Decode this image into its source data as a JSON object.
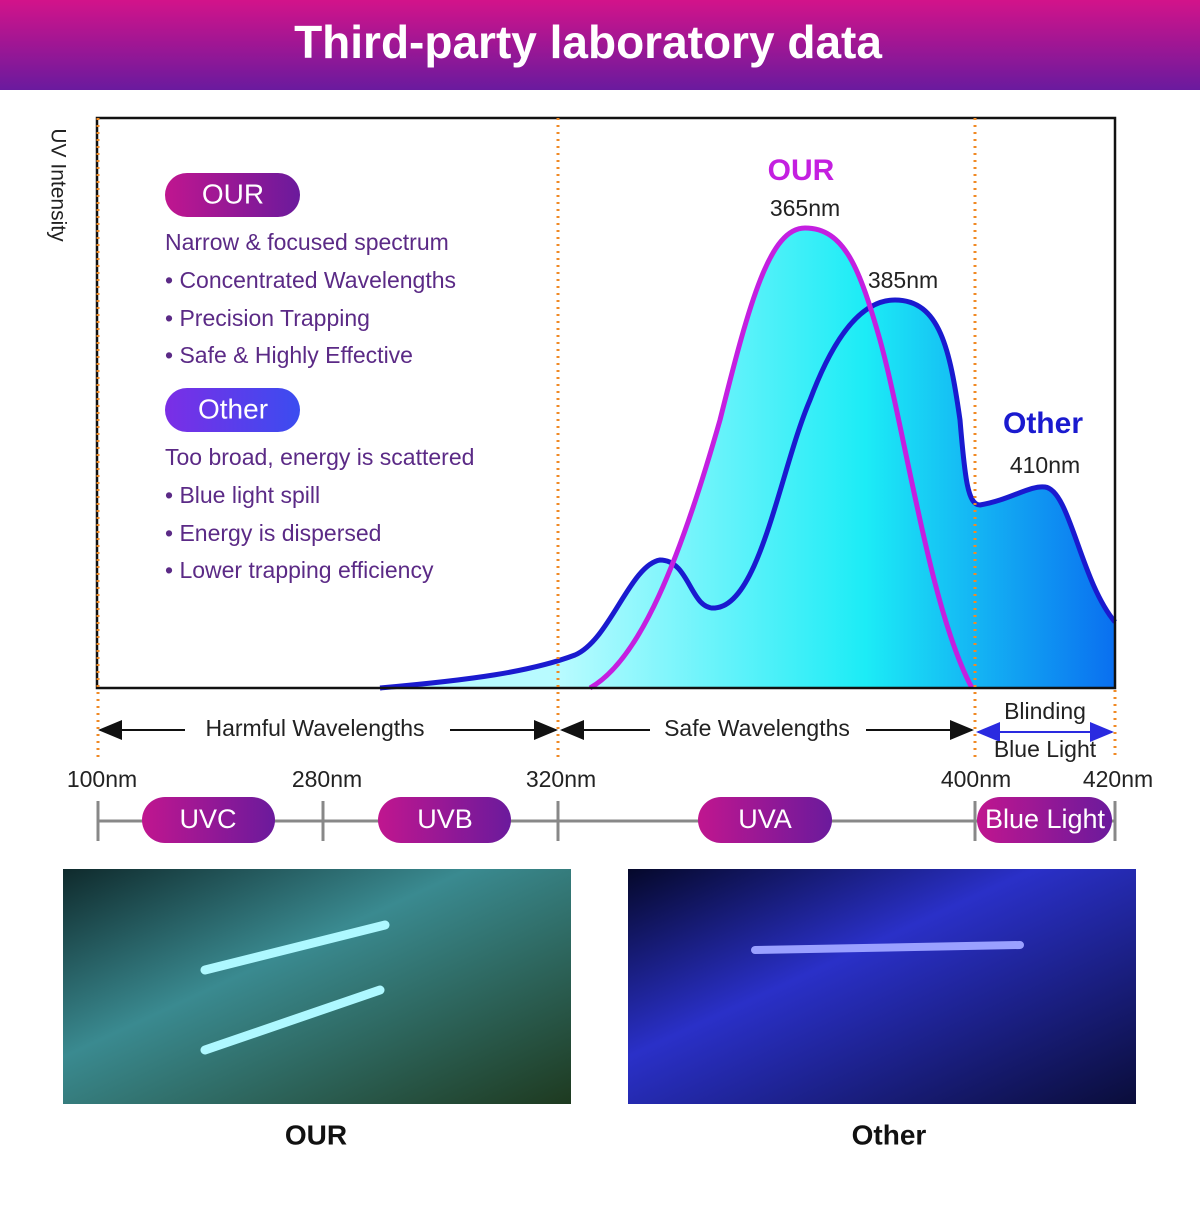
{
  "header": {
    "title": "Third-party laboratory data"
  },
  "chart": {
    "y_axis_label": "UV Intensity",
    "peaks": [
      {
        "name": "OUR",
        "wavelength": "365nm"
      },
      {
        "wavelength": "385nm"
      },
      {
        "name": "Other",
        "wavelength": "410nm"
      }
    ]
  },
  "legend": {
    "our": {
      "badge": "OUR",
      "summary": "Narrow & focused spectrum",
      "points": [
        "• Concentrated Wavelengths",
        "• Precision Trapping",
        "• Safe & Highly Effective"
      ]
    },
    "other": {
      "badge": "Other",
      "summary": "Too broad, energy is scattered",
      "points": [
        "• Blue light spill",
        "• Energy is dispersed",
        "• Lower trapping efficiency"
      ]
    }
  },
  "ranges": {
    "harmful": "Harmful Wavelengths",
    "safe": "Safe Wavelengths",
    "blinding": [
      "Blinding",
      "Blue Light"
    ]
  },
  "scale": {
    "ticks": [
      "100nm",
      "280nm",
      "320nm",
      "400nm",
      "420nm"
    ],
    "bands": [
      "UVC",
      "UVB",
      "UVA",
      "Blue Light"
    ]
  },
  "photos": [
    {
      "caption": "OUR"
    },
    {
      "caption": "Other"
    }
  ]
}
